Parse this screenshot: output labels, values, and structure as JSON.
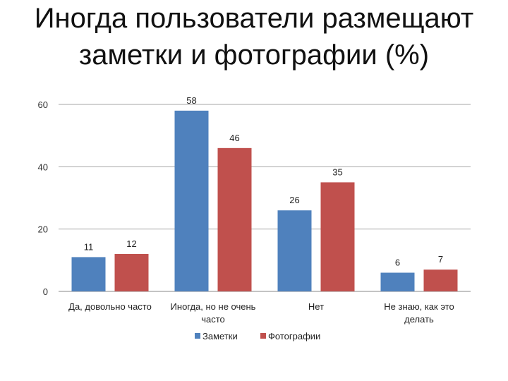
{
  "title_lines": [
    "Иногда пользователи размещают",
    "заметки и фотографии (%)"
  ],
  "chart_data": {
    "type": "bar",
    "title": "Иногда пользователи размещают заметки и фотографии (%)",
    "categories": [
      [
        "Да, довольно часто"
      ],
      [
        "Иногда, но не очень",
        "часто"
      ],
      [
        "Нет"
      ],
      [
        "Не знаю, как это",
        "делать"
      ]
    ],
    "series": [
      {
        "name": "Заметки",
        "values": [
          11,
          58,
          26,
          6
        ],
        "color": "#4F81BD"
      },
      {
        "name": "Фотографии",
        "values": [
          12,
          46,
          35,
          7
        ],
        "color": "#C0504D"
      }
    ],
    "yticks": [
      "0",
      "20",
      "40",
      "60"
    ],
    "ylim": [
      0,
      60
    ],
    "grid": true,
    "legend": "bottom",
    "xlabel": "",
    "ylabel": ""
  }
}
